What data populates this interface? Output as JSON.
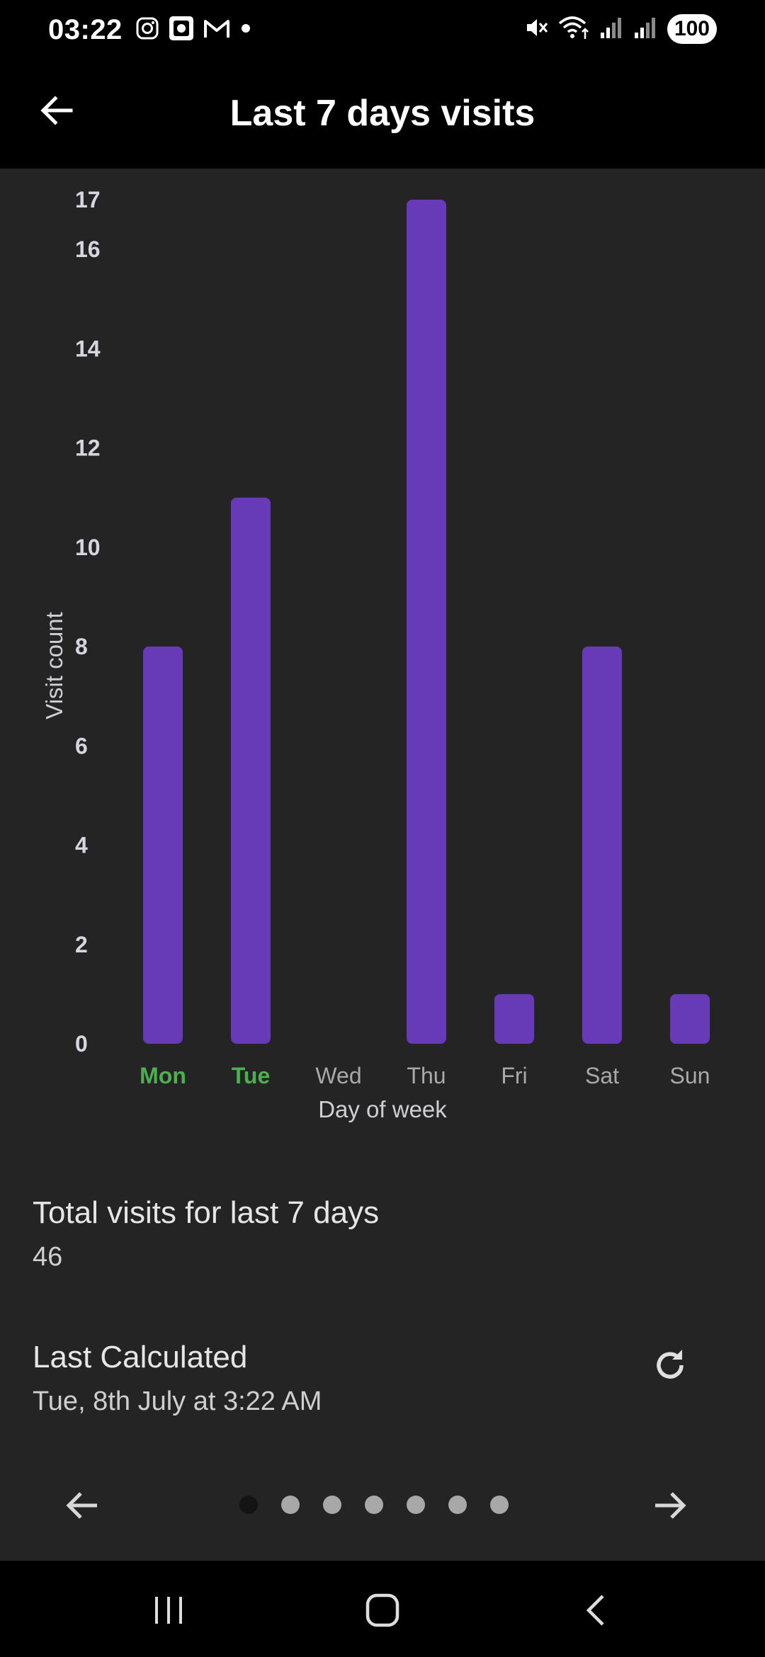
{
  "status_bar": {
    "time": "03:22",
    "left_icons": [
      "instagram-icon",
      "photo-icon",
      "gmail-icon",
      "dot-icon"
    ],
    "right_icons": [
      "mute-icon",
      "wifi-icon",
      "signal-icon",
      "signal-icon"
    ],
    "battery": "100"
  },
  "app_bar": {
    "title": "Last 7 days visits",
    "back_icon": "arrow-left-icon"
  },
  "chart_data": {
    "type": "bar",
    "categories": [
      "Mon",
      "Tue",
      "Wed",
      "Thu",
      "Fri",
      "Sat",
      "Sun"
    ],
    "values": [
      8,
      11,
      0,
      17,
      1,
      8,
      1
    ],
    "ylabel": "Visit count",
    "xlabel": "Day of week",
    "y_ticks": [
      "0",
      "2",
      "4",
      "6",
      "8",
      "10",
      "12",
      "14",
      "16",
      "17"
    ],
    "ylim": [
      0,
      17
    ],
    "highlighted_categories": [
      "Mon",
      "Tue"
    ],
    "bar_color": "#673ab7",
    "highlight_color": "#4caf50",
    "grid": false
  },
  "summary": {
    "total_label": "Total visits for last 7 days",
    "total_value": "46",
    "last_calc_label": "Last Calculated",
    "last_calc_value": "Tue, 8th July at 3:22 AM",
    "refresh_icon": "refresh-icon"
  },
  "pager": {
    "page_count": 7,
    "active_index": 0,
    "prev_icon": "arrow-left-icon",
    "next_icon": "arrow-right-icon"
  },
  "nav_bar": {
    "icons": [
      "recent-apps-icon",
      "home-icon",
      "back-icon"
    ]
  }
}
